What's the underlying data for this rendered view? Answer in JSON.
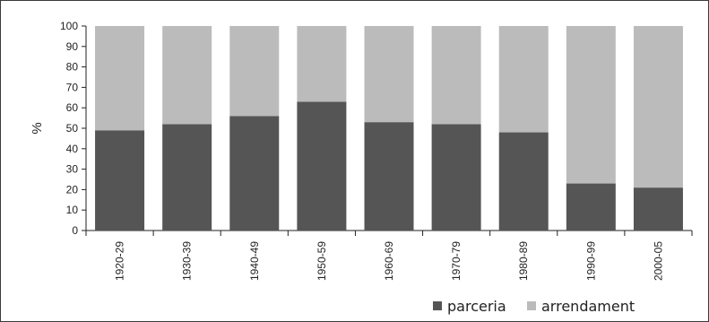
{
  "chart_data": {
    "type": "bar",
    "stacked": true,
    "categories": [
      "1920-29",
      "1930-39",
      "1940-49",
      "1950-59",
      "1960-69",
      "1970-79",
      "1980-89",
      "1990-99",
      "2000-05"
    ],
    "series": [
      {
        "name": "parceria",
        "values": [
          49,
          52,
          56,
          63,
          53,
          52,
          48,
          23,
          21
        ],
        "color": "#555555"
      },
      {
        "name": "arrendament",
        "values": [
          51,
          48,
          44,
          37,
          47,
          48,
          52,
          77,
          79
        ],
        "color": "#bbbbbb"
      }
    ],
    "ylabel": "%",
    "ylim": [
      0,
      100
    ],
    "yticks": [
      0,
      10,
      20,
      30,
      40,
      50,
      60,
      70,
      80,
      90,
      100
    ],
    "grid": false,
    "legend_position": "bottom-right"
  }
}
